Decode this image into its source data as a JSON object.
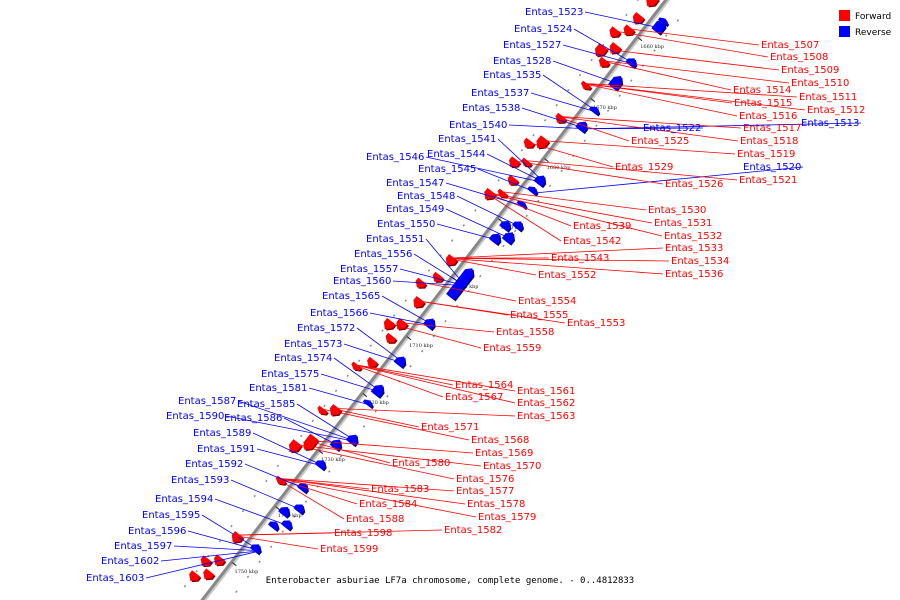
{
  "caption": "Enterobacter asburiae LF7a chromosome, complete genome. - 0..4812833",
  "legend": [
    {
      "label": "Forward",
      "color": "#ff0000"
    },
    {
      "label": "Reverse",
      "color": "#0000ff"
    }
  ],
  "colors": {
    "forward": "#ff0000",
    "reverse": "#0000ff",
    "backbone": "#888888"
  },
  "ticks": [
    "1660 kbp",
    "1670 kbp",
    "1680 kbp",
    "1690 kbp",
    "1700 kbp",
    "1710 kbp",
    "1720 kbp",
    "1730 kbp",
    "1740 kbp",
    "1750 kbp"
  ],
  "labels": [
    {
      "text": "Entas_1507",
      "strand": "forward"
    },
    {
      "text": "Entas_1508",
      "strand": "forward"
    },
    {
      "text": "Entas_1509",
      "strand": "forward"
    },
    {
      "text": "Entas_1510",
      "strand": "forward"
    },
    {
      "text": "Entas_1511",
      "strand": "forward"
    },
    {
      "text": "Entas_1512",
      "strand": "forward"
    },
    {
      "text": "Entas_1513",
      "strand": "reverse"
    },
    {
      "text": "Entas_1514",
      "strand": "forward"
    },
    {
      "text": "Entas_1515",
      "strand": "forward"
    },
    {
      "text": "Entas_1516",
      "strand": "forward"
    },
    {
      "text": "Entas_1517",
      "strand": "forward"
    },
    {
      "text": "Entas_1518",
      "strand": "forward"
    },
    {
      "text": "Entas_1519",
      "strand": "forward"
    },
    {
      "text": "Entas_1520",
      "strand": "reverse"
    },
    {
      "text": "Entas_1521",
      "strand": "forward"
    },
    {
      "text": "Entas_1522",
      "strand": "reverse"
    },
    {
      "text": "Entas_1523",
      "strand": "reverse"
    },
    {
      "text": "Entas_1524",
      "strand": "reverse"
    },
    {
      "text": "Entas_1525",
      "strand": "forward"
    },
    {
      "text": "Entas_1526",
      "strand": "forward"
    },
    {
      "text": "Entas_1527",
      "strand": "reverse"
    },
    {
      "text": "Entas_1528",
      "strand": "reverse"
    },
    {
      "text": "Entas_1529",
      "strand": "forward"
    },
    {
      "text": "Entas_1530",
      "strand": "forward"
    },
    {
      "text": "Entas_1531",
      "strand": "forward"
    },
    {
      "text": "Entas_1532",
      "strand": "forward"
    },
    {
      "text": "Entas_1533",
      "strand": "forward"
    },
    {
      "text": "Entas_1534",
      "strand": "forward"
    },
    {
      "text": "Entas_1535",
      "strand": "reverse"
    },
    {
      "text": "Entas_1536",
      "strand": "forward"
    },
    {
      "text": "Entas_1537",
      "strand": "reverse"
    },
    {
      "text": "Entas_1538",
      "strand": "reverse"
    },
    {
      "text": "Entas_1539",
      "strand": "forward"
    },
    {
      "text": "Entas_1540",
      "strand": "reverse"
    },
    {
      "text": "Entas_1541",
      "strand": "reverse"
    },
    {
      "text": "Entas_1542",
      "strand": "forward"
    },
    {
      "text": "Entas_1543",
      "strand": "forward"
    },
    {
      "text": "Entas_1544",
      "strand": "reverse"
    },
    {
      "text": "Entas_1545",
      "strand": "reverse"
    },
    {
      "text": "Entas_1546",
      "strand": "reverse"
    },
    {
      "text": "Entas_1547",
      "strand": "reverse"
    },
    {
      "text": "Entas_1548",
      "strand": "reverse"
    },
    {
      "text": "Entas_1549",
      "strand": "reverse"
    },
    {
      "text": "Entas_1550",
      "strand": "reverse"
    },
    {
      "text": "Entas_1551",
      "strand": "reverse"
    },
    {
      "text": "Entas_1552",
      "strand": "forward"
    },
    {
      "text": "Entas_1553",
      "strand": "forward"
    },
    {
      "text": "Entas_1554",
      "strand": "forward"
    },
    {
      "text": "Entas_1555",
      "strand": "forward"
    },
    {
      "text": "Entas_1556",
      "strand": "reverse"
    },
    {
      "text": "Entas_1557",
      "strand": "reverse"
    },
    {
      "text": "Entas_1558",
      "strand": "forward"
    },
    {
      "text": "Entas_1559",
      "strand": "forward"
    },
    {
      "text": "Entas_1560",
      "strand": "reverse"
    },
    {
      "text": "Entas_1561",
      "strand": "forward"
    },
    {
      "text": "Entas_1562",
      "strand": "forward"
    },
    {
      "text": "Entas_1563",
      "strand": "forward"
    },
    {
      "text": "Entas_1564",
      "strand": "forward"
    },
    {
      "text": "Entas_1565",
      "strand": "reverse"
    },
    {
      "text": "Entas_1566",
      "strand": "reverse"
    },
    {
      "text": "Entas_1567",
      "strand": "forward"
    },
    {
      "text": "Entas_1568",
      "strand": "forward"
    },
    {
      "text": "Entas_1569",
      "strand": "forward"
    },
    {
      "text": "Entas_1570",
      "strand": "forward"
    },
    {
      "text": "Entas_1571",
      "strand": "forward"
    },
    {
      "text": "Entas_1572",
      "strand": "reverse"
    },
    {
      "text": "Entas_1573",
      "strand": "reverse"
    },
    {
      "text": "Entas_1574",
      "strand": "reverse"
    },
    {
      "text": "Entas_1575",
      "strand": "reverse"
    },
    {
      "text": "Entas_1576",
      "strand": "forward"
    },
    {
      "text": "Entas_1577",
      "strand": "forward"
    },
    {
      "text": "Entas_1578",
      "strand": "forward"
    },
    {
      "text": "Entas_1579",
      "strand": "forward"
    },
    {
      "text": "Entas_1580",
      "strand": "forward"
    },
    {
      "text": "Entas_1581",
      "strand": "reverse"
    },
    {
      "text": "Entas_1582",
      "strand": "forward"
    },
    {
      "text": "Entas_1583",
      "strand": "forward"
    },
    {
      "text": "Entas_1584",
      "strand": "forward"
    },
    {
      "text": "Entas_1585",
      "strand": "reverse"
    },
    {
      "text": "Entas_1586",
      "strand": "reverse"
    },
    {
      "text": "Entas_1587",
      "strand": "reverse"
    },
    {
      "text": "Entas_1588",
      "strand": "forward"
    },
    {
      "text": "Entas_1589",
      "strand": "reverse"
    },
    {
      "text": "Entas_1590",
      "strand": "reverse"
    },
    {
      "text": "Entas_1591",
      "strand": "reverse"
    },
    {
      "text": "Entas_1592",
      "strand": "reverse"
    },
    {
      "text": "Entas_1593",
      "strand": "reverse"
    },
    {
      "text": "Entas_1594",
      "strand": "reverse"
    },
    {
      "text": "Entas_1595",
      "strand": "reverse"
    },
    {
      "text": "Entas_1596",
      "strand": "reverse"
    },
    {
      "text": "Entas_1597",
      "strand": "reverse"
    },
    {
      "text": "Entas_1598",
      "strand": "forward"
    },
    {
      "text": "Entas_1599",
      "strand": "forward"
    },
    {
      "text": "Entas_1602",
      "strand": "reverse"
    },
    {
      "text": "Entas_1603",
      "strand": "reverse"
    }
  ]
}
